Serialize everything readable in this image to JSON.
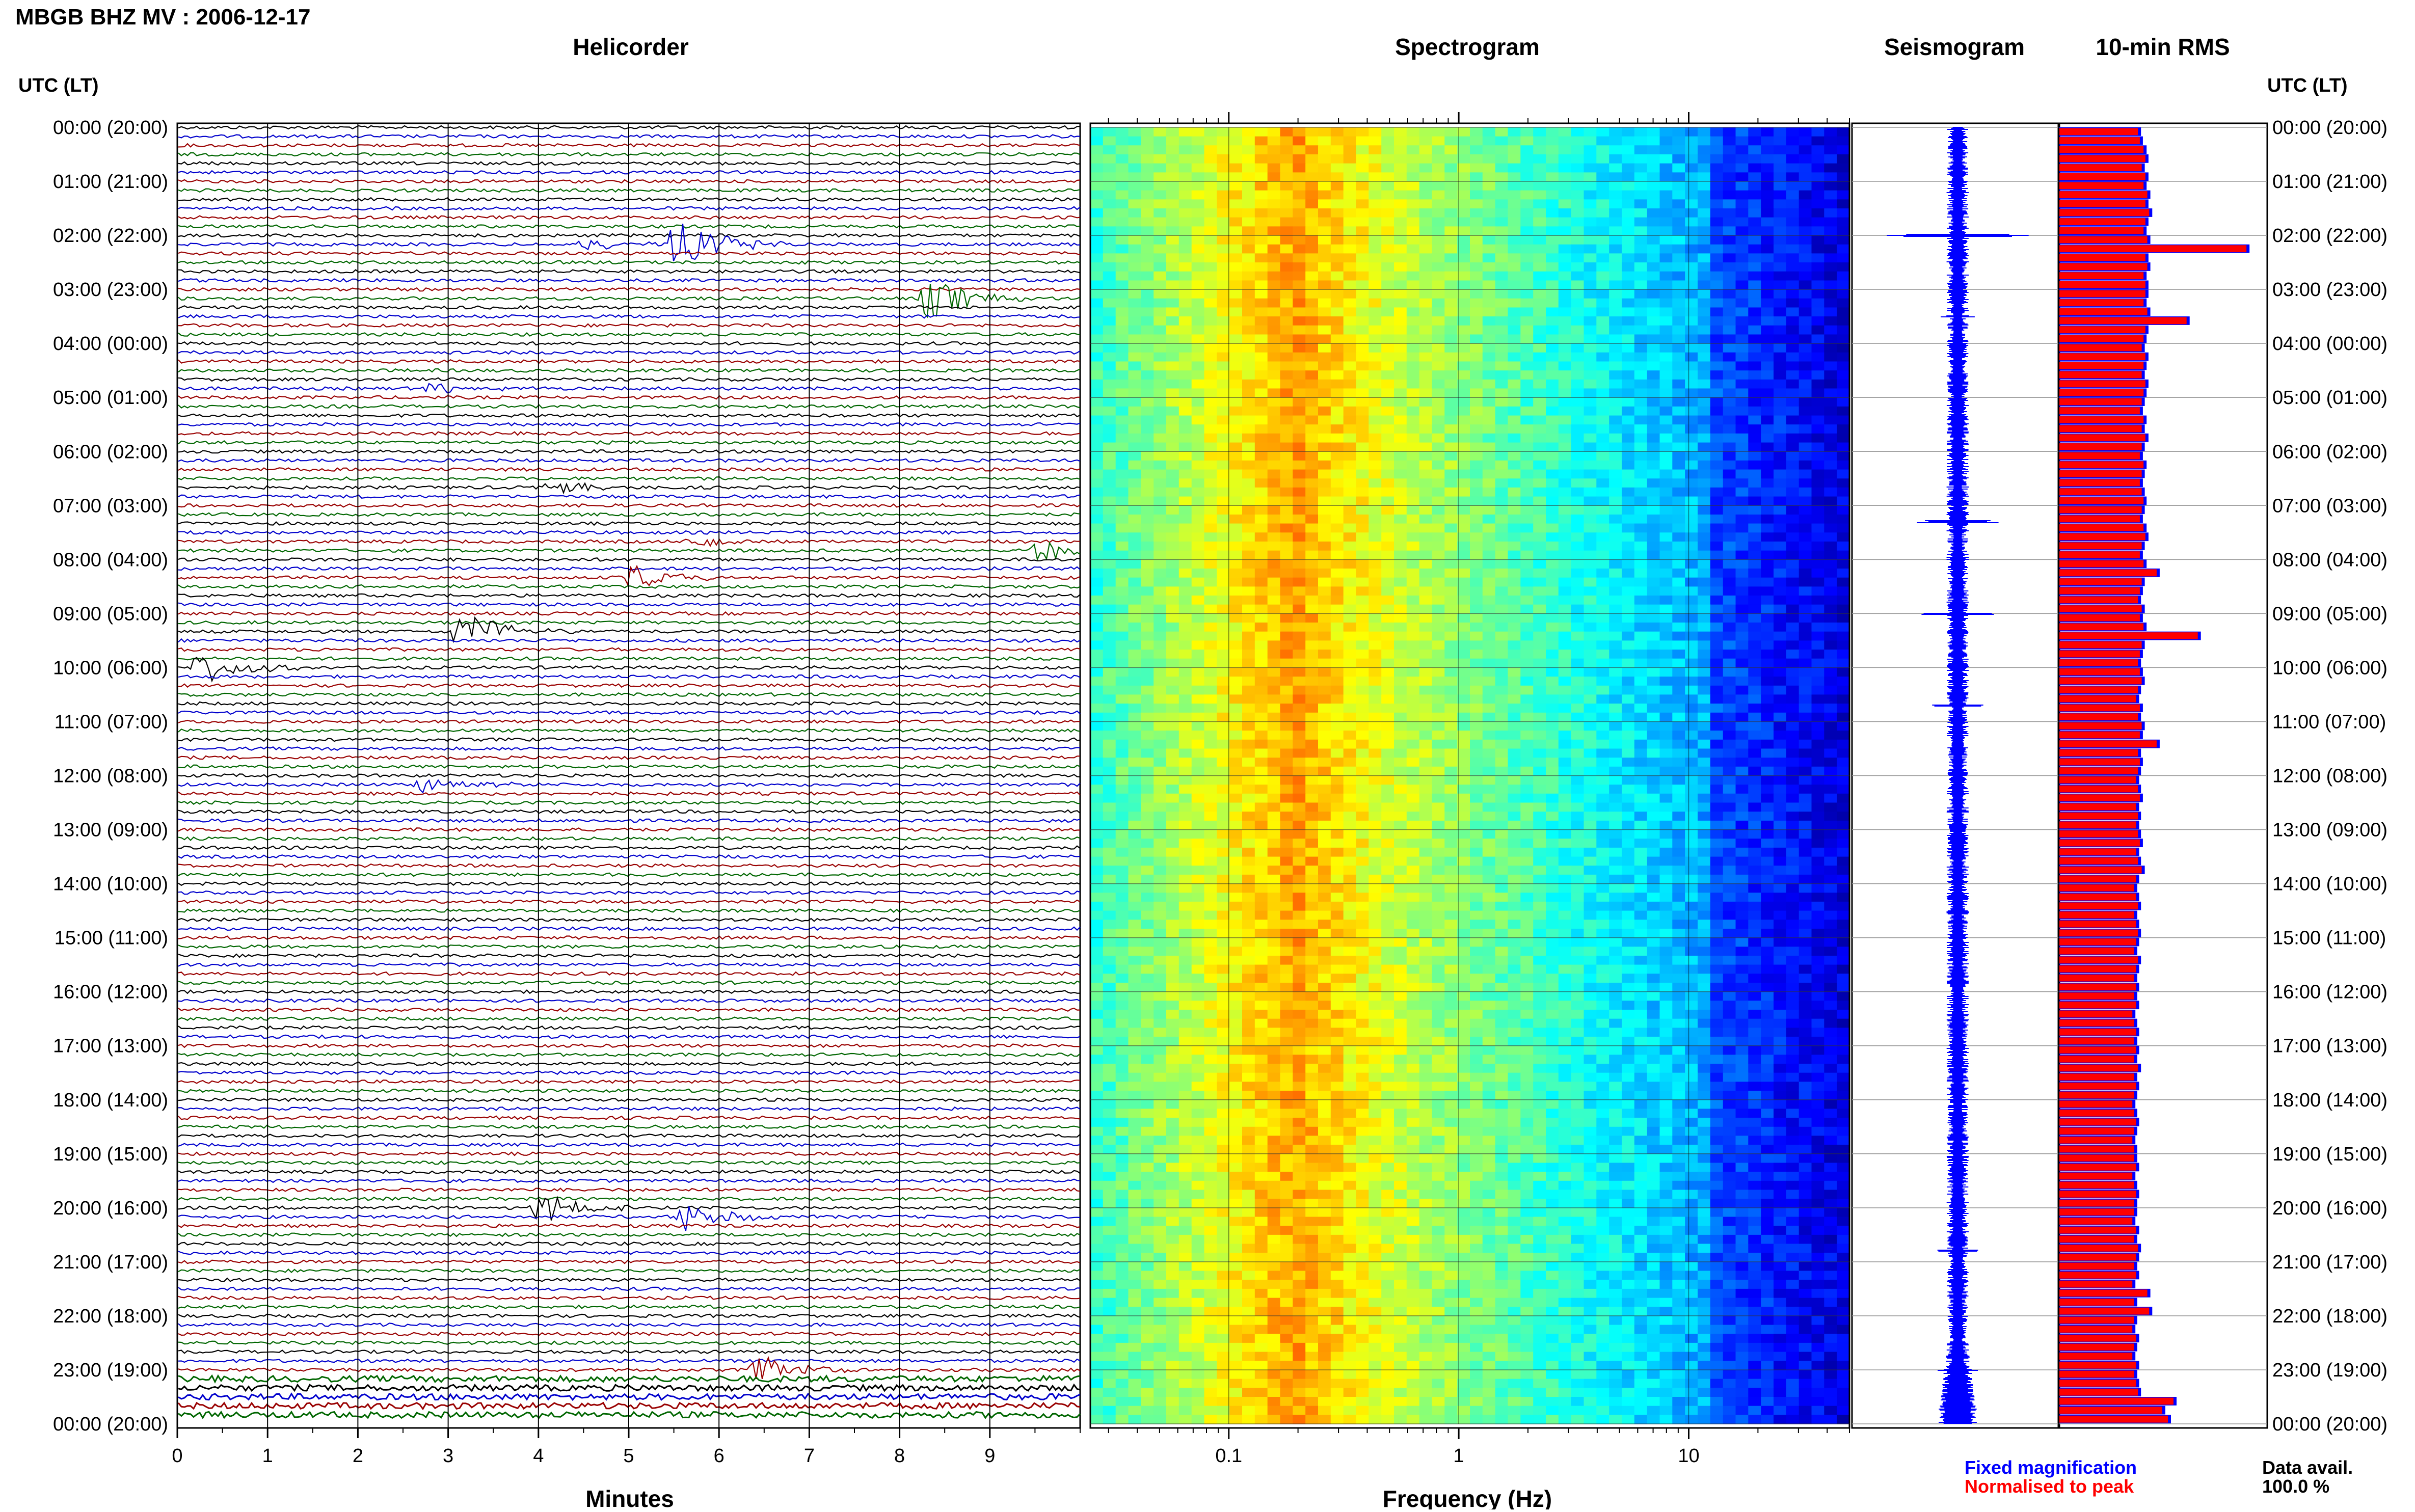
{
  "header": {
    "station_title": "MBGB BHZ MV : 2006-12-17",
    "utc_label_left": "UTC (LT)",
    "utc_label_right": "UTC (LT)"
  },
  "panels": {
    "helicorder": "Helicorder",
    "spectrogram": "Spectrogram",
    "seismogram": "Seismogram",
    "rms": "10-min RMS"
  },
  "hour_labels": [
    "00:00 (20:00)",
    "01:00 (21:00)",
    "02:00 (22:00)",
    "03:00 (23:00)",
    "04:00 (00:00)",
    "05:00 (01:00)",
    "06:00 (02:00)",
    "07:00 (03:00)",
    "08:00 (04:00)",
    "09:00 (05:00)",
    "10:00 (06:00)",
    "11:00 (07:00)",
    "12:00 (08:00)",
    "13:00 (09:00)",
    "14:00 (10:00)",
    "15:00 (11:00)",
    "16:00 (12:00)",
    "17:00 (13:00)",
    "18:00 (14:00)",
    "19:00 (15:00)",
    "20:00 (16:00)",
    "21:00 (17:00)",
    "22:00 (18:00)",
    "23:00 (19:00)",
    "00:00 (20:00)"
  ],
  "axes": {
    "minutes_label": "Minutes",
    "minutes_ticks": [
      "0",
      "1",
      "2",
      "3",
      "4",
      "5",
      "6",
      "7",
      "8",
      "9"
    ],
    "frequency_label": "Frequency (Hz)",
    "frequency_ticks": [
      "0.1",
      "1",
      "10"
    ],
    "frequency_range_hz": [
      0.025,
      50
    ]
  },
  "legend": {
    "fixed": "Fixed magnification",
    "normalised": "Normalised to peak",
    "fixed_color": "#0000ff",
    "normalised_color": "#ff0000",
    "data_avail_label": "Data avail.",
    "data_avail_value": "100.0 %"
  },
  "colors": {
    "trace_cycle": [
      "#000000",
      "#0000cc",
      "#990000",
      "#006600"
    ],
    "spectrogram_low": "#000080",
    "spectrogram_high": "#ffff00"
  },
  "chart_data": [
    {
      "type": "heatmap",
      "title": "Helicorder",
      "xlabel": "Minutes",
      "x_range": [
        0,
        10
      ],
      "rows": 144,
      "row_minutes": 10,
      "events": [
        {
          "row": 13,
          "minute": 5.5,
          "amp": 1.0
        },
        {
          "row": 19,
          "minute": 8.3,
          "amp": 0.8
        },
        {
          "row": 13,
          "minute": 4.5,
          "amp": 0.25
        },
        {
          "row": 29,
          "minute": 2.8,
          "amp": 0.25
        },
        {
          "row": 40,
          "minute": 4.1,
          "amp": 0.25
        },
        {
          "row": 46,
          "minute": 5.7,
          "amp": 0.25
        },
        {
          "row": 47,
          "minute": 9.5,
          "amp": 0.45
        },
        {
          "row": 50,
          "minute": 5.0,
          "amp": 0.55
        },
        {
          "row": 56,
          "minute": 3.1,
          "amp": 0.8
        },
        {
          "row": 60,
          "minute": 0.2,
          "amp": 0.7
        },
        {
          "row": 73,
          "minute": 2.7,
          "amp": 0.3
        },
        {
          "row": 120,
          "minute": 4.0,
          "amp": 0.55
        },
        {
          "row": 121,
          "minute": 5.6,
          "amp": 0.55
        },
        {
          "row": 138,
          "minute": 6.4,
          "amp": 0.55
        }
      ]
    },
    {
      "type": "heatmap",
      "title": "Spectrogram",
      "xlabel": "Frequency (Hz)",
      "x_scale": "log",
      "x_range": [
        0.025,
        50
      ],
      "peak_frequency_hz": 0.2,
      "rows": 144
    },
    {
      "type": "line",
      "title": "Seismogram",
      "spikes": [
        {
          "hour": 2,
          "amp": 0.9
        },
        {
          "hour": 3.5,
          "amp": 0.2
        },
        {
          "hour": 7.3,
          "amp": 0.45
        },
        {
          "hour": 9.0,
          "amp": 0.55
        },
        {
          "hour": 10.7,
          "amp": 0.4
        },
        {
          "hour": 20.8,
          "amp": 0.3
        },
        {
          "hour": 23.0,
          "amp": 0.25
        }
      ]
    },
    {
      "type": "bar",
      "title": "10-min RMS",
      "series": [
        {
          "name": "Fixed magnification"
        },
        {
          "name": "Normalised to peak"
        }
      ],
      "bins_per_hour": 6,
      "values": [
        0.42,
        0.43,
        0.45,
        0.46,
        0.44,
        0.46,
        0.45,
        0.47,
        0.46,
        0.48,
        0.46,
        0.45,
        0.47,
        1.0,
        0.46,
        0.47,
        0.45,
        0.46,
        0.46,
        0.45,
        0.47,
        0.68,
        0.46,
        0.45,
        0.44,
        0.46,
        0.45,
        0.44,
        0.46,
        0.45,
        0.44,
        0.43,
        0.45,
        0.44,
        0.46,
        0.44,
        0.43,
        0.45,
        0.44,
        0.43,
        0.44,
        0.45,
        0.44,
        0.43,
        0.45,
        0.46,
        0.44,
        0.43,
        0.45,
        0.52,
        0.44,
        0.43,
        0.42,
        0.44,
        0.43,
        0.45,
        0.74,
        0.44,
        0.43,
        0.42,
        0.43,
        0.44,
        0.42,
        0.41,
        0.43,
        0.42,
        0.44,
        0.43,
        0.52,
        0.42,
        0.43,
        0.42,
        0.41,
        0.42,
        0.43,
        0.41,
        0.42,
        0.41,
        0.42,
        0.43,
        0.41,
        0.42,
        0.44,
        0.41,
        0.4,
        0.41,
        0.42,
        0.4,
        0.41,
        0.42,
        0.41,
        0.4,
        0.42,
        0.41,
        0.4,
        0.41,
        0.4,
        0.41,
        0.39,
        0.4,
        0.41,
        0.4,
        0.41,
        0.4,
        0.42,
        0.4,
        0.41,
        0.4,
        0.39,
        0.4,
        0.41,
        0.4,
        0.39,
        0.4,
        0.4,
        0.41,
        0.39,
        0.4,
        0.41,
        0.4,
        0.4,
        0.39,
        0.41,
        0.4,
        0.42,
        0.41,
        0.4,
        0.41,
        0.39,
        0.47,
        0.4,
        0.48,
        0.4,
        0.39,
        0.41,
        0.4,
        0.39,
        0.41,
        0.4,
        0.41,
        0.42,
        0.61,
        0.55,
        0.58
      ]
    }
  ]
}
